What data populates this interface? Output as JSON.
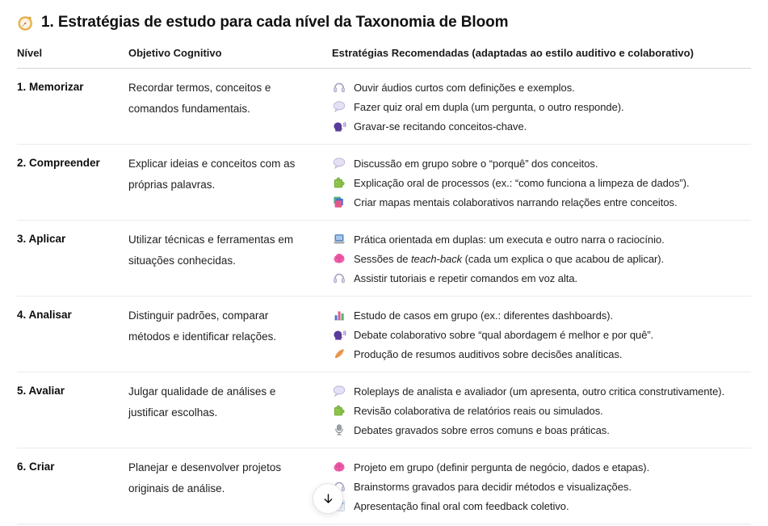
{
  "page": {
    "title": "1. Estratégias de estudo para cada nível da Taxonomia de Bloom",
    "title_icon": "compass-icon"
  },
  "table": {
    "headers": [
      "Nível",
      "Objetivo Cognitivo",
      "Estratégias Recomendadas (adaptadas ao estilo auditivo e colaborativo)"
    ],
    "rows": [
      {
        "level": "1. Memorizar",
        "objective": "Recordar termos, conceitos e comandos fundamentais.",
        "strategies": [
          {
            "icon": "headphones-icon",
            "segments": [
              {
                "t": "Ouvir áudios curtos com definições e exemplos."
              }
            ]
          },
          {
            "icon": "speech-balloon-icon",
            "segments": [
              {
                "t": "Fazer quiz oral em dupla (um pergunta, o outro responde)."
              }
            ]
          },
          {
            "icon": "speaking-head-icon",
            "segments": [
              {
                "t": "Gravar-se recitando conceitos-chave."
              }
            ]
          }
        ]
      },
      {
        "level": "2. Compreender",
        "objective": "Explicar ideias e conceitos com as próprias palavras.",
        "strategies": [
          {
            "icon": "speech-balloon-icon",
            "segments": [
              {
                "t": "Discussão em grupo sobre o “porquê” dos conceitos."
              }
            ]
          },
          {
            "icon": "puzzle-piece-icon",
            "segments": [
              {
                "t": "Explicação oral de processos (ex.: “como funciona a limpeza de dados”)."
              }
            ]
          },
          {
            "icon": "books-icon",
            "segments": [
              {
                "t": "Criar mapas mentais colaborativos narrando relações entre conceitos."
              }
            ]
          }
        ]
      },
      {
        "level": "3. Aplicar",
        "objective": "Utilizar técnicas e ferramentas em situações conhecidas.",
        "strategies": [
          {
            "icon": "laptop-icon",
            "segments": [
              {
                "t": "Prática orientada em duplas: um executa e outro narra o raciocínio."
              }
            ]
          },
          {
            "icon": "brain-icon",
            "segments": [
              {
                "t": "Sessões de "
              },
              {
                "t": "teach-back",
                "i": true
              },
              {
                "t": " (cada um explica o que acabou de aplicar)."
              }
            ]
          },
          {
            "icon": "headphones-icon",
            "segments": [
              {
                "t": "Assistir tutoriais e repetir comandos em voz alta."
              }
            ]
          }
        ]
      },
      {
        "level": "4. Analisar",
        "objective": "Distinguir padrões, comparar métodos e identificar relações.",
        "strategies": [
          {
            "icon": "bar-chart-icon",
            "segments": [
              {
                "t": "Estudo de casos em grupo (ex.: diferentes dashboards)."
              }
            ]
          },
          {
            "icon": "speaking-head-icon",
            "segments": [
              {
                "t": "Debate colaborativo sobre “qual abordagem é melhor e por quê”."
              }
            ]
          },
          {
            "icon": "feather-icon",
            "segments": [
              {
                "t": "Produção de resumos auditivos sobre decisões analíticas."
              }
            ]
          }
        ]
      },
      {
        "level": "5. Avaliar",
        "objective": "Julgar qualidade de análises e justificar escolhas.",
        "strategies": [
          {
            "icon": "speech-balloon-icon",
            "segments": [
              {
                "t": "Roleplays de analista e avaliador (um apresenta, outro critica construtivamente)."
              }
            ]
          },
          {
            "icon": "puzzle-piece-icon",
            "segments": [
              {
                "t": "Revisão colaborativa de relatórios reais ou simulados."
              }
            ]
          },
          {
            "icon": "microphone-icon",
            "segments": [
              {
                "t": "Debates gravados sobre erros comuns e boas práticas."
              }
            ]
          }
        ]
      },
      {
        "level": "6. Criar",
        "objective": "Planejar e desenvolver projetos originais de análise.",
        "strategies": [
          {
            "icon": "brain-icon",
            "segments": [
              {
                "t": "Projeto em grupo (definir pergunta de negócio, dados e etapas)."
              }
            ]
          },
          {
            "icon": "headphones-icon",
            "segments": [
              {
                "t": "Brainstorms gravados para decidir métodos e visualizações."
              }
            ]
          },
          {
            "icon": "chart-increasing-icon",
            "segments": [
              {
                "t": "Apresentação final oral com feedback coletivo."
              }
            ]
          }
        ]
      }
    ]
  },
  "scroll_button": {
    "icon": "arrow-down-icon"
  },
  "colors": {
    "text": "#0d0d0d",
    "header_border": "#d4d4d4",
    "row_border": "#ebebeb",
    "background": "#ffffff"
  }
}
